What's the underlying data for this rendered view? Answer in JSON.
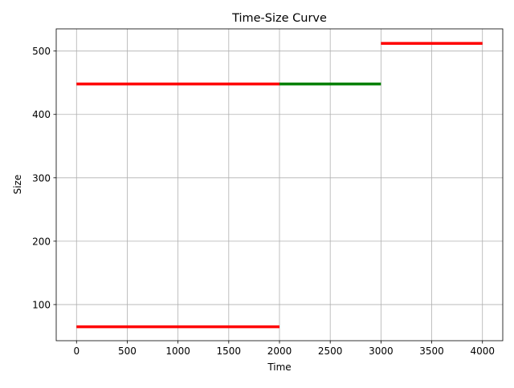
{
  "chart_data": {
    "type": "line",
    "title": "Time-Size Curve",
    "xlabel": "Time",
    "ylabel": "Size",
    "xlim": [
      -200,
      4200
    ],
    "ylim": [
      43,
      535
    ],
    "x_ticks": [
      0,
      500,
      1000,
      1500,
      2000,
      2500,
      3000,
      3500,
      4000
    ],
    "y_ticks": [
      100,
      200,
      300,
      400,
      500
    ],
    "grid": true,
    "series": [
      {
        "color": "#ff0000",
        "x": [
          0,
          2000
        ],
        "y": [
          65,
          65
        ]
      },
      {
        "color": "#ff0000",
        "x": [
          0,
          2000
        ],
        "y": [
          448,
          448
        ]
      },
      {
        "color": "#008000",
        "x": [
          2000,
          3000
        ],
        "y": [
          448,
          448
        ]
      },
      {
        "color": "#ff0000",
        "x": [
          3000,
          4000
        ],
        "y": [
          512,
          512
        ]
      }
    ]
  }
}
